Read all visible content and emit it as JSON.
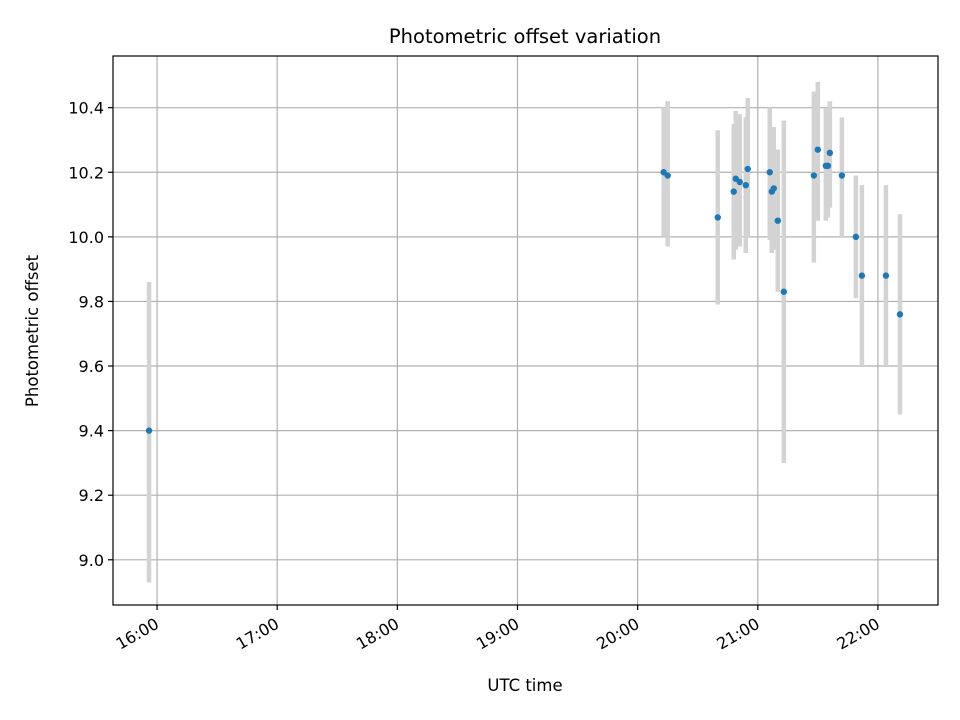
{
  "chart_data": {
    "type": "scatter",
    "title": "Photometric offset variation",
    "xlabel": "UTC time",
    "ylabel": "Photometric offset",
    "x_ticks": [
      "16:00",
      "17:00",
      "18:00",
      "19:00",
      "20:00",
      "21:00",
      "22:00"
    ],
    "y_ticks": [
      "9.0",
      "9.2",
      "9.4",
      "9.6",
      "9.8",
      "10.0",
      "10.2",
      "10.4"
    ],
    "xlim": [
      "15:38",
      "22:30"
    ],
    "ylim": [
      8.86,
      10.56
    ],
    "grid": true,
    "marker_color": "#1f77b4",
    "errorbar_color": "#d3d3d3",
    "points": [
      {
        "t": "15:56",
        "y": 9.4,
        "lo": 8.93,
        "hi": 9.86
      },
      {
        "t": "20:13",
        "y": 10.2,
        "lo": 10.0,
        "hi": 10.4
      },
      {
        "t": "20:15",
        "y": 10.19,
        "lo": 9.97,
        "hi": 10.42
      },
      {
        "t": "20:40",
        "y": 10.06,
        "lo": 9.79,
        "hi": 10.33
      },
      {
        "t": "20:48",
        "y": 10.14,
        "lo": 9.93,
        "hi": 10.35
      },
      {
        "t": "20:49",
        "y": 10.18,
        "lo": 9.96,
        "hi": 10.39
      },
      {
        "t": "20:51",
        "y": 10.17,
        "lo": 9.97,
        "hi": 10.38
      },
      {
        "t": "20:54",
        "y": 10.16,
        "lo": 9.95,
        "hi": 10.37
      },
      {
        "t": "20:55",
        "y": 10.21,
        "lo": 10.0,
        "hi": 10.43
      },
      {
        "t": "21:06",
        "y": 10.2,
        "lo": 9.99,
        "hi": 10.4
      },
      {
        "t": "21:07",
        "y": 10.14,
        "lo": 9.95,
        "hi": 10.34
      },
      {
        "t": "21:08",
        "y": 10.15,
        "lo": 9.96,
        "hi": 10.34
      },
      {
        "t": "21:10",
        "y": 10.05,
        "lo": 9.83,
        "hi": 10.27
      },
      {
        "t": "21:13",
        "y": 9.83,
        "lo": 9.3,
        "hi": 10.36
      },
      {
        "t": "21:28",
        "y": 10.19,
        "lo": 9.92,
        "hi": 10.45
      },
      {
        "t": "21:30",
        "y": 10.27,
        "lo": 10.05,
        "hi": 10.48
      },
      {
        "t": "21:34",
        "y": 10.22,
        "lo": 10.05,
        "hi": 10.4
      },
      {
        "t": "21:35",
        "y": 10.22,
        "lo": 10.06,
        "hi": 10.37
      },
      {
        "t": "21:36",
        "y": 10.26,
        "lo": 10.09,
        "hi": 10.42
      },
      {
        "t": "21:42",
        "y": 10.19,
        "lo": 10.0,
        "hi": 10.37
      },
      {
        "t": "21:49",
        "y": 10.0,
        "lo": 9.81,
        "hi": 10.19
      },
      {
        "t": "21:52",
        "y": 9.88,
        "lo": 9.6,
        "hi": 10.16
      },
      {
        "t": "22:04",
        "y": 9.88,
        "lo": 9.6,
        "hi": 10.16
      },
      {
        "t": "22:11",
        "y": 9.76,
        "lo": 9.45,
        "hi": 10.07
      }
    ]
  }
}
